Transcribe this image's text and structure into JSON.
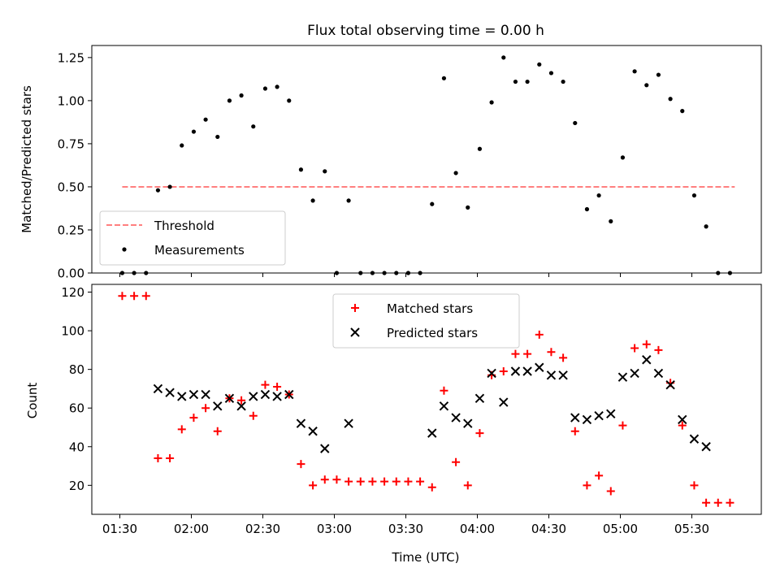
{
  "chart_data": [
    {
      "type": "scatter",
      "title": "Flux total observing time = 0.00 h",
      "xlabel": "",
      "ylabel": "Matched/Predicted stars",
      "ylim": [
        0,
        1.32
      ],
      "y_ticks": [
        "0.00",
        "0.25",
        "0.50",
        "0.75",
        "1.00",
        "1.25"
      ],
      "grid": false,
      "legend_position": "lower-left",
      "threshold": {
        "name": "Threshold",
        "y": 0.5,
        "x_start": "01:31",
        "x_end": "05:48",
        "color": "#ff7f7f"
      },
      "series": [
        {
          "name": "Measurements",
          "color": "#000000",
          "x": [
            "01:31",
            "01:36",
            "01:41",
            "01:46",
            "01:51",
            "01:56",
            "02:01",
            "02:06",
            "02:11",
            "02:16",
            "02:21",
            "02:26",
            "02:31",
            "02:36",
            "02:41",
            "02:46",
            "02:51",
            "02:56",
            "03:01",
            "03:06",
            "03:11",
            "03:16",
            "03:21",
            "03:26",
            "03:31",
            "03:36",
            "03:41",
            "03:46",
            "03:51",
            "03:56",
            "04:01",
            "04:06",
            "04:11",
            "04:16",
            "04:21",
            "04:26",
            "04:31",
            "04:36",
            "04:41",
            "04:46",
            "04:51",
            "04:56",
            "05:01",
            "05:06",
            "05:11",
            "05:16",
            "05:21",
            "05:26",
            "05:31",
            "05:36",
            "05:41",
            "05:46"
          ],
          "y": [
            0.0,
            0.0,
            0.0,
            0.48,
            0.5,
            0.74,
            0.82,
            0.89,
            0.79,
            1.0,
            1.03,
            0.85,
            1.07,
            1.08,
            1.0,
            0.6,
            0.42,
            0.59,
            0.0,
            0.42,
            0.0,
            0.0,
            0.0,
            0.0,
            0.0,
            0.0,
            0.4,
            1.13,
            0.58,
            0.38,
            0.72,
            0.99,
            1.25,
            1.11,
            1.11,
            1.21,
            1.16,
            1.11,
            0.87,
            0.37,
            0.45,
            0.3,
            0.67,
            1.17,
            1.09,
            1.15,
            1.01,
            0.94,
            0.45,
            0.27,
            0.0,
            0.0
          ]
        }
      ]
    },
    {
      "type": "scatter",
      "title": "",
      "xlabel": "Time (UTC)",
      "ylabel": "Count",
      "ylim": [
        5,
        124
      ],
      "y_ticks": [
        "20",
        "40",
        "60",
        "80",
        "100",
        "120"
      ],
      "x_ticks": [
        "01:30",
        "02:00",
        "02:30",
        "03:00",
        "03:30",
        "04:00",
        "04:30",
        "05:00",
        "05:30"
      ],
      "grid": false,
      "legend_position": "upper-center",
      "series": [
        {
          "name": "Matched stars",
          "marker": "plus",
          "color": "#ff0000",
          "x": [
            "01:31",
            "01:36",
            "01:41",
            "01:46",
            "01:51",
            "01:56",
            "02:01",
            "02:06",
            "02:11",
            "02:16",
            "02:21",
            "02:26",
            "02:31",
            "02:36",
            "02:41",
            "02:46",
            "02:51",
            "02:56",
            "03:01",
            "03:06",
            "03:11",
            "03:16",
            "03:21",
            "03:26",
            "03:31",
            "03:36",
            "03:41",
            "03:46",
            "03:51",
            "03:56",
            "04:01",
            "04:06",
            "04:11",
            "04:16",
            "04:21",
            "04:26",
            "04:31",
            "04:36",
            "04:41",
            "04:46",
            "04:51",
            "04:56",
            "05:01",
            "05:06",
            "05:11",
            "05:16",
            "05:21",
            "05:26",
            "05:31",
            "05:36",
            "05:41",
            "05:46"
          ],
          "y": [
            118,
            118,
            118,
            34,
            34,
            49,
            55,
            60,
            48,
            65,
            64,
            56,
            72,
            71,
            67,
            31,
            20,
            23,
            23,
            22,
            22,
            22,
            22,
            22,
            22,
            22,
            19,
            69,
            32,
            20,
            47,
            77,
            79,
            88,
            88,
            98,
            89,
            86,
            48,
            20,
            25,
            17,
            51,
            91,
            93,
            90,
            73,
            51,
            20,
            11,
            11,
            11
          ]
        },
        {
          "name": "Predicted stars",
          "marker": "x",
          "color": "#000000",
          "x": [
            "01:46",
            "01:51",
            "01:56",
            "02:01",
            "02:06",
            "02:11",
            "02:16",
            "02:21",
            "02:26",
            "02:31",
            "02:36",
            "02:41",
            "02:46",
            "02:51",
            "02:56",
            "03:06",
            "03:41",
            "03:46",
            "03:51",
            "03:56",
            "04:01",
            "04:06",
            "04:11",
            "04:16",
            "04:21",
            "04:26",
            "04:31",
            "04:36",
            "04:41",
            "04:46",
            "04:51",
            "04:56",
            "05:01",
            "05:06",
            "05:11",
            "05:16",
            "05:21",
            "05:26",
            "05:31",
            "05:36"
          ],
          "y": [
            70,
            68,
            66,
            67,
            67,
            61,
            65,
            61,
            66,
            67,
            66,
            67,
            52,
            48,
            39,
            52,
            47,
            61,
            55,
            52,
            65,
            78,
            63,
            79,
            79,
            81,
            77,
            77,
            55,
            54,
            56,
            57,
            76,
            78,
            85,
            78,
            72,
            54,
            44,
            40
          ]
        }
      ]
    }
  ]
}
